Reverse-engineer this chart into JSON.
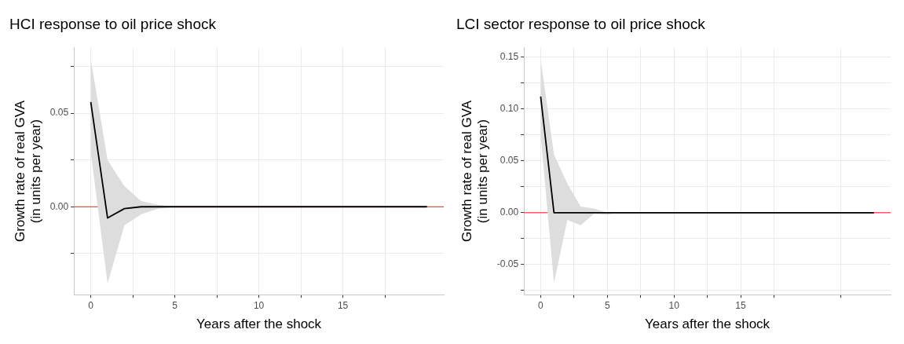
{
  "chart_data": [
    {
      "type": "line",
      "title": "HCI response to oil price shock",
      "xlabel": "Years after the shock",
      "ylabel": "Growth rate of real GVA\n(in units per year)",
      "x": [
        0,
        1,
        2,
        3,
        4,
        5,
        6,
        7,
        8,
        9,
        10,
        11,
        12,
        13,
        14,
        15,
        16,
        17,
        18,
        19,
        20
      ],
      "series": [
        {
          "color": "#000000",
          "values": [
            0.056,
            -0.006,
            -0.001,
            0,
            0,
            0,
            0,
            0,
            0,
            0,
            0,
            0,
            0,
            0,
            0,
            0,
            0,
            0,
            0,
            0,
            0
          ],
          "upper": [
            0.079,
            0.025,
            0.011,
            0.003,
            0.001,
            0,
            0,
            0,
            0,
            0,
            0,
            0,
            0,
            0,
            0,
            0,
            0,
            0,
            0,
            0,
            0
          ],
          "lower": [
            0.029,
            -0.041,
            -0.01,
            -0.004,
            -0.001,
            0,
            0,
            0,
            0,
            0,
            0,
            0,
            0,
            0,
            0,
            0,
            0,
            0,
            0,
            0,
            0
          ]
        }
      ],
      "xlim": [
        -1,
        21
      ],
      "xticks": [
        0,
        {
          "value": 2.5,
          "label": null
        },
        5,
        {
          "value": 7.5,
          "label": null
        },
        10,
        {
          "value": 12.5,
          "label": null
        },
        15,
        {
          "value": 17.5,
          "label": null
        }
      ],
      "ylim": [
        -0.047,
        0.085
      ],
      "yticks": [
        {
          "value": -0.025,
          "label": null
        },
        {
          "value": 0,
          "label": "0.00"
        },
        {
          "value": 0.025,
          "label": null
        },
        {
          "value": 0.05,
          "label": "0.05"
        },
        {
          "value": 0.075,
          "label": null
        }
      ],
      "ref_lines": [
        {
          "axis": "y",
          "value": 0,
          "color": "#ff0000"
        }
      ],
      "grid": true,
      "legend": false,
      "marker": "none",
      "line_style": "solid"
    },
    {
      "type": "line",
      "title": "LCI sector response to oil price shock",
      "xlabel": "Years after the shock",
      "ylabel": "Growth rate of real GVA\n(in units per year)",
      "x": [
        0,
        1,
        2,
        3,
        4,
        5,
        6,
        7,
        8,
        9,
        10,
        11,
        12,
        13,
        14,
        15,
        16,
        17,
        18,
        19,
        20,
        21,
        22,
        23,
        24,
        25
      ],
      "series": [
        {
          "color": "#000000",
          "values": [
            0.112,
            0,
            0,
            0,
            0,
            0,
            0,
            0,
            0,
            0,
            0,
            0,
            0,
            0,
            0,
            0,
            0,
            0,
            0,
            0,
            0,
            0,
            0,
            0,
            0,
            0
          ],
          "upper": [
            0.148,
            0.056,
            0.028,
            0.006,
            0.004,
            0,
            0,
            0,
            0,
            0,
            0,
            0,
            0,
            0,
            0,
            0,
            0,
            0,
            0,
            0,
            0,
            0,
            0,
            0,
            0,
            0
          ],
          "lower": [
            0.075,
            -0.068,
            -0.007,
            -0.012,
            -0.001,
            -0.002,
            0,
            0,
            0,
            0,
            0,
            0,
            0,
            0,
            0,
            0,
            0,
            0,
            0,
            0,
            0,
            0,
            0,
            0,
            0,
            0
          ]
        }
      ],
      "xlim": [
        -1.25,
        26.25
      ],
      "xticks": [
        0,
        {
          "value": 2.5,
          "label": null
        },
        5,
        {
          "value": 7.5,
          "label": null
        },
        10,
        {
          "value": 12.5,
          "label": null
        },
        15,
        {
          "value": 17.5,
          "label": null
        },
        {
          "value": 22.5,
          "label": null
        }
      ],
      "ylim": [
        -0.079,
        0.159
      ],
      "yticks": [
        {
          "value": -0.075,
          "label": null
        },
        {
          "value": -0.05,
          "label": "-0.05"
        },
        {
          "value": -0.025,
          "label": null
        },
        {
          "value": 0,
          "label": "0.00"
        },
        {
          "value": 0.025,
          "label": null
        },
        {
          "value": 0.05,
          "label": "0.05"
        },
        {
          "value": 0.075,
          "label": null
        },
        {
          "value": 0.1,
          "label": "0.10"
        },
        {
          "value": 0.125,
          "label": null
        },
        {
          "value": 0.15,
          "label": "0.15"
        }
      ],
      "ref_lines": [
        {
          "axis": "y",
          "value": 0,
          "color": "#ff0000"
        }
      ],
      "grid": true,
      "legend": false,
      "marker": "none",
      "line_style": "solid"
    }
  ]
}
